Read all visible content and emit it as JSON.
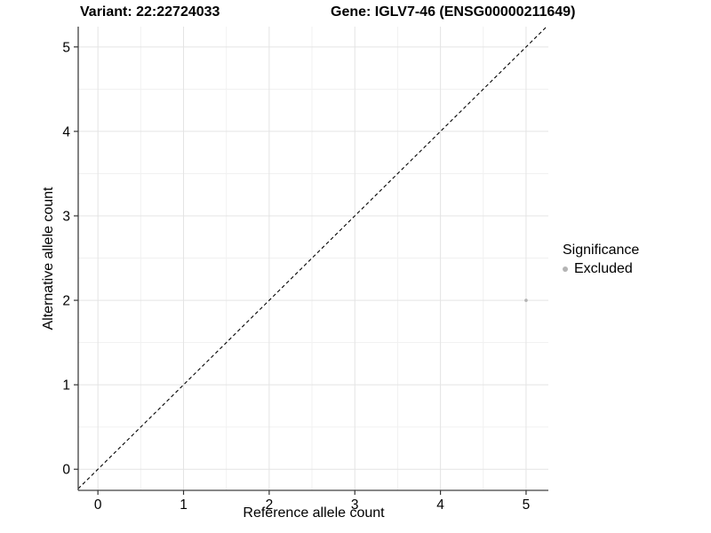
{
  "chart_data": {
    "type": "scatter",
    "title_left": "Variant: 22:22724033",
    "title_right": "Gene: IGLV7-46 (ENSG00000211649)",
    "xlabel": "Reference allele count",
    "ylabel": "Alternative allele count",
    "xlim": [
      -0.23,
      5.26
    ],
    "ylim": [
      -0.25,
      5.24
    ],
    "x_ticks": [
      0,
      1,
      2,
      3,
      4,
      5
    ],
    "y_ticks": [
      0,
      1,
      2,
      3,
      4,
      5
    ],
    "x_minor_ticks": [
      0.5,
      1.5,
      2.5,
      3.5,
      4.5
    ],
    "y_minor_ticks": [
      0.5,
      1.5,
      2.5,
      3.5,
      4.5
    ],
    "grid": {
      "on": true,
      "major_color": "#e4e4e4",
      "minor_color": "#f1f1f1"
    },
    "reference_line": {
      "slope": 1,
      "intercept": 0,
      "style": "dashed",
      "color": "#000000"
    },
    "series": [
      {
        "name": "Excluded",
        "color": "#b4b4b4",
        "point_radius": 1.8,
        "points": [
          {
            "x": 5,
            "y": 2
          }
        ]
      }
    ],
    "legend": {
      "title": "Significance",
      "position": "right",
      "entries": [
        {
          "label": "Excluded",
          "color": "#b4b4b4"
        }
      ]
    },
    "axis_color": "#404040",
    "tick_color": "#333333",
    "tick_label_color": "#000000"
  }
}
